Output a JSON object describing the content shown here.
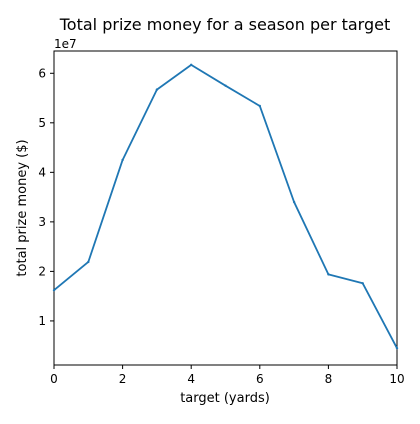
{
  "chart_data": {
    "type": "line",
    "title": "Total prize money for a season per target",
    "xlabel": "target (yards)",
    "ylabel": "total prize money ($)",
    "y_offset_label": "1e7",
    "x": [
      0,
      1,
      2,
      3,
      4,
      5,
      6,
      7,
      8,
      9,
      10
    ],
    "series": [
      {
        "values": [
          16200000,
          21900000,
          42500000,
          56700000,
          61700000,
          57500000,
          53400000,
          34000000,
          19400000,
          17600000,
          4500000
        ]
      }
    ],
    "xlim": [
      0,
      10
    ],
    "ylim": [
      1100000,
      64500000
    ],
    "xticks": [
      0,
      2,
      4,
      6,
      8,
      10
    ],
    "xtick_labels": [
      "0",
      "2",
      "4",
      "6",
      "8",
      "10"
    ],
    "yticks": [
      10000000,
      20000000,
      30000000,
      40000000,
      50000000,
      60000000
    ],
    "ytick_labels": [
      "1",
      "2",
      "3",
      "4",
      "5",
      "6"
    ],
    "grid": false,
    "line_color": "#1f77b4"
  }
}
